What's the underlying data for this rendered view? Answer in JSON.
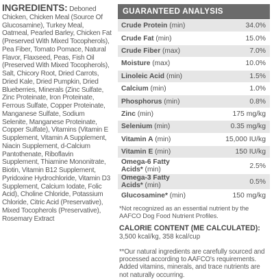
{
  "ingredients": {
    "heading": "INGREDIENTS:",
    "text": "Deboned Chicken, Chicken Meal (Source Of Glucosamine), Turkey Meal, Oatmeal, Pearled Barley, Chicken Fat (Preserved With Mixed Tocopherols), Pea Fiber, Tomato Pomace, Natural Flavor, Flaxseed, Peas, Fish Oil (Preserved With Mixed Tocopherols), Salt, Chicory Root, Dried Carrots, Dried Kale, Dried Pumpkin, Dried Blueberries, Minerals (Zinc Sulfate, Zinc Proteinate, Iron Proteinate, Ferrous Sulfate, Copper Proteinate, Manganese Sulfate, Sodium Selenite, Manganese Proteinate, Copper Sulfate), Vitamins (Vitamin E Supplement, Vitamin A Supplement, Niacin Supplement, d-Calcium Pantothenate, Riboflavin Supplement, Thiamine Mononitrate, Biotin, Vitamin B12 Supplement, Pyridoxine Hydrochloride, Vitamin D3 Supplement, Calcium Iodate, Folic Acid), Choline Chloride, Potassium Chloride, Citric Acid (Preservative), Mixed Tocopherols (Preservative), Rosemary Extract"
  },
  "analysis": {
    "header": "GUARANTEED ANALYSIS",
    "rows": [
      {
        "name": "Crude Protein",
        "unit": " (min)",
        "value": "34.0%"
      },
      {
        "name": "Crude Fat",
        "unit": " (min)",
        "value": "15.0%"
      },
      {
        "name": "Crude Fiber",
        "unit": " (max)",
        "value": "7.0%"
      },
      {
        "name": "Moisture",
        "unit": " (max)",
        "value": "10.0%"
      },
      {
        "name": "Linoleic Acid",
        "unit": " (min)",
        "value": "1.5%"
      },
      {
        "name": "Calcium",
        "unit": " (min)",
        "value": "1.0%"
      },
      {
        "name": "Phosphorus",
        "unit": " (min)",
        "value": "0.8%"
      },
      {
        "name": "Zinc",
        "unit": " (min)",
        "value": "175 mg/kg"
      },
      {
        "name": "Selenium",
        "unit": " (min)",
        "value": "0.35 mg/kg"
      },
      {
        "name": "Vitamin A",
        "unit": " (min)",
        "value": "15,000 IU/kg"
      },
      {
        "name": "Vitamin E",
        "unit": " (min)",
        "value": "150 IU/kg"
      },
      {
        "name": "Omega-6 Fatty Acids*",
        "unit": " (min)",
        "value": "2.5%"
      },
      {
        "name": "Omega-3 Fatty Acids*",
        "unit": " (min)",
        "value": "0.5%"
      },
      {
        "name": "Glucosamine*",
        "unit": " (min)",
        "value": "150 mg/kg"
      }
    ],
    "note": "*Not recognized as an essential nutrient by the AAFCO Dog Food Nutrient Profiles."
  },
  "calorie": {
    "title": "CALORIE CONTENT (ME CALCULATED):",
    "value": "3,500 kcal/kg, 358 kcal/cup"
  },
  "footnote": "**Our natural ingredients are carefully sourced and processed according to AAFCO's requirements. Added vitamins, minerals, and trace nutrients are not naturally occurring."
}
